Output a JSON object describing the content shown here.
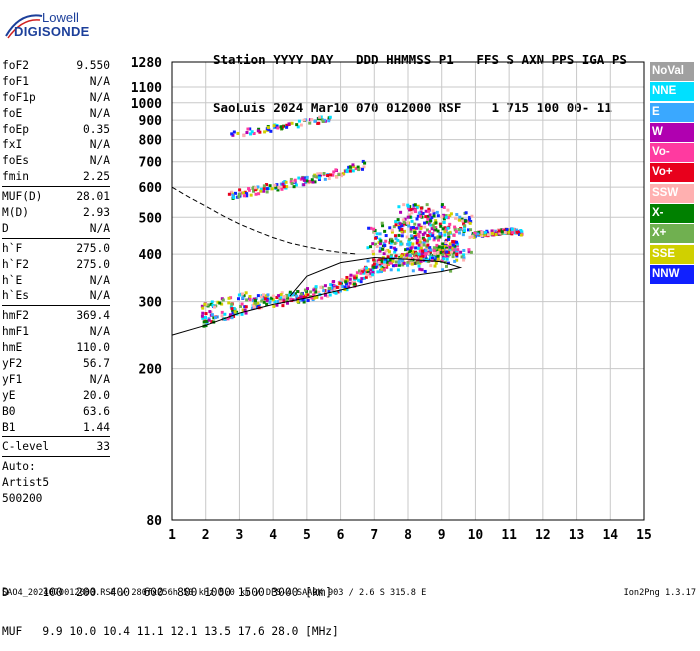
{
  "logo": {
    "line1": "Lowell",
    "line2": "DIGISONDE"
  },
  "header": {
    "labels": "Station YYYY DAY   DDD HHMMSS P1   FFS S AXN PPS IGA PS",
    "values": "SaoLuis 2024 Mar10 070 012000 RSF    1 715 100 00- 11"
  },
  "params": [
    {
      "name": "foF2",
      "value": "9.550"
    },
    {
      "name": "foF1",
      "value": "N/A"
    },
    {
      "name": "foF1p",
      "value": "N/A"
    },
    {
      "name": "foE",
      "value": "N/A"
    },
    {
      "name": "foEp",
      "value": "0.35"
    },
    {
      "name": "fxI",
      "value": "N/A"
    },
    {
      "name": "foEs",
      "value": "N/A"
    },
    {
      "name": "fmin",
      "value": "2.25"
    },
    {
      "name": "MUF(D)",
      "value": "28.01"
    },
    {
      "name": "M(D)",
      "value": "2.93"
    },
    {
      "name": "D",
      "value": "N/A"
    },
    {
      "name": "h`F",
      "value": "275.0"
    },
    {
      "name": "h`F2",
      "value": "275.0"
    },
    {
      "name": "h`E",
      "value": "N/A"
    },
    {
      "name": "h`Es",
      "value": "N/A"
    },
    {
      "name": "hmF2",
      "value": "369.4"
    },
    {
      "name": "hmF1",
      "value": "N/A"
    },
    {
      "name": "hmE",
      "value": "110.0"
    },
    {
      "name": "yF2",
      "value": "56.7"
    },
    {
      "name": "yF1",
      "value": "N/A"
    },
    {
      "name": "yE",
      "value": "20.0"
    },
    {
      "name": "B0",
      "value": "63.6"
    },
    {
      "name": "B1",
      "value": "1.44"
    },
    {
      "name": "C-level",
      "value": "33"
    },
    {
      "name": "Auto:",
      "value": ""
    },
    {
      "name": "Artist5",
      "value": ""
    },
    {
      "name": "500200",
      "value": ""
    }
  ],
  "footer": {
    "row1": "D     100  200  400  600  800 1000 1500 3000 [km]",
    "row2": "MUF   9.9 10.0 10.4 11.1 12.1 13.5 17.6 28.0 [MHz]",
    "caption": "SAO4_2024070012000.RSF / 280fx256h 50 kHz 5.0 km / DPS-4 SAAOK 903 / 2.6 S 315.8 E",
    "version": "Ion2Png 1.3.17"
  },
  "legend": [
    {
      "label": "NoVal",
      "color": "#a0a0a0"
    },
    {
      "label": "NNE",
      "color": "#00e0ff"
    },
    {
      "label": "E",
      "color": "#3aa8ff"
    },
    {
      "label": "W",
      "color": "#b000b0"
    },
    {
      "label": "Vo-",
      "color": "#ff3aa0"
    },
    {
      "label": "Vo+",
      "color": "#e8001c"
    },
    {
      "label": "SSW",
      "color": "#ffb0b0"
    },
    {
      "label": "X-",
      "color": "#008000"
    },
    {
      "label": "X+",
      "color": "#70b050"
    },
    {
      "label": "SSE",
      "color": "#d0d000"
    },
    {
      "label": "NNW",
      "color": "#1020ff"
    }
  ],
  "chart_data": {
    "type": "scatter",
    "title": "",
    "xlabel": "",
    "ylabel": "",
    "xlim": [
      1,
      15
    ],
    "ylim": [
      80,
      1280
    ],
    "y_scale": "log",
    "grid": true,
    "xticks": [
      1,
      2,
      3,
      4,
      5,
      6,
      7,
      8,
      9,
      10,
      11,
      12,
      13,
      14,
      15
    ],
    "yticks": [
      80,
      200,
      300,
      400,
      500,
      600,
      700,
      800,
      900,
      1000,
      1100,
      1280
    ],
    "traces": [
      {
        "name": "F2 trace (1st hop)",
        "x": [
          1.9,
          2.5,
          3.0,
          3.5,
          4.0,
          4.5,
          5.0,
          5.5,
          6.0,
          6.5,
          6.8,
          7.2,
          7.6,
          8.0,
          8.5,
          9.0,
          9.5
        ],
        "y": [
          275,
          285,
          295,
          300,
          303,
          306,
          312,
          320,
          330,
          345,
          360,
          375,
          385,
          390,
          395,
          405,
          420
        ]
      },
      {
        "name": "F2 spread",
        "x": [
          6.8,
          7.5,
          8.0,
          8.5,
          9.0,
          9.5,
          10.0,
          10.5,
          11.0,
          11.4
        ],
        "y": [
          410,
          420,
          450,
          460,
          440,
          445,
          450,
          455,
          460,
          455
        ]
      },
      {
        "name": "2nd hop",
        "x": [
          2.7,
          3.3,
          4.0,
          4.6,
          5.2,
          5.8,
          6.3,
          6.8
        ],
        "y": [
          570,
          585,
          600,
          615,
          632,
          650,
          670,
          690
        ]
      },
      {
        "name": "3rd hop",
        "x": [
          2.7,
          3.3,
          4.0,
          4.6,
          5.2,
          5.7
        ],
        "y": [
          820,
          840,
          858,
          875,
          893,
          912
        ]
      }
    ],
    "curves": [
      {
        "name": "profile",
        "x": [
          1.0,
          2.0,
          3.0,
          4.0,
          5.0,
          6.0,
          7.0,
          8.0,
          9.0,
          9.55,
          9.0,
          8.0,
          7.0,
          6.0,
          5.0,
          4.5
        ],
        "y": [
          245,
          260,
          280,
          295,
          307,
          322,
          338,
          350,
          360,
          369,
          382,
          388,
          392,
          380,
          350,
          310
        ]
      },
      {
        "name": "dashed",
        "style": "dashed",
        "x": [
          1.0,
          1.5,
          2.0,
          2.5,
          3.0,
          3.5,
          4.0,
          4.5,
          5.0,
          5.5,
          6.0,
          6.5
        ],
        "y": [
          600,
          565,
          535,
          505,
          480,
          460,
          442,
          428,
          418,
          410,
          404,
          400
        ]
      }
    ]
  }
}
